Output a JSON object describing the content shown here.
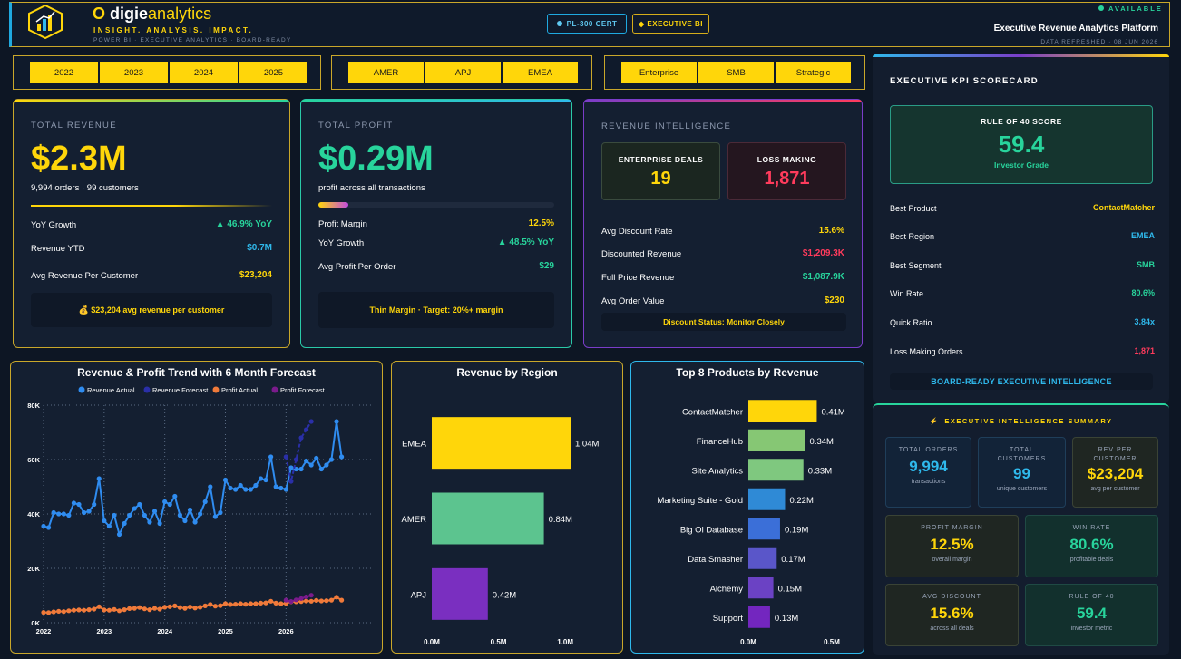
{
  "header": {
    "brand_letter": "O",
    "brand_name_1": "digie",
    "brand_name_2": "analytics",
    "tagline": "INSIGHT. ANALYSIS. IMPACT.",
    "subline": "POWER BI · EXECUTIVE ANALYTICS · BOARD-READY",
    "cert_badge": "PL-300 CERT",
    "exec_badge": "◆ EXECUTIVE BI",
    "status": "AVAILABLE",
    "platform_title": "Executive Revenue Analytics Platform",
    "refreshed": "DATA REFRESHED · 08 JUN 2026"
  },
  "slicers": {
    "years": [
      "2022",
      "2023",
      "2024",
      "2025"
    ],
    "regions": [
      "AMER",
      "APJ",
      "EMEA"
    ],
    "segments": [
      "Enterprise",
      "SMB",
      "Strategic"
    ]
  },
  "revenue_card": {
    "label": "TOTAL REVENUE",
    "value": "$2.3M",
    "sub": "9,994 orders · 99 customers",
    "rows": [
      {
        "label": "YoY Growth",
        "value": "▲ 46.9% YoY"
      },
      {
        "label": "Revenue YTD",
        "value": "$0.7M"
      },
      {
        "label": "Avg Revenue Per Customer",
        "value": "$23,204"
      }
    ],
    "footer": "💰 $23,204 avg revenue per customer"
  },
  "profit_card": {
    "label": "TOTAL PROFIT",
    "value": "$0.29M",
    "sub": "profit across all transactions",
    "margin_fill": 0.125,
    "rows": [
      {
        "label": "Profit Margin",
        "value": "12.5%"
      },
      {
        "label": "YoY Growth",
        "value": "▲ 48.5% YoY"
      },
      {
        "label": "Avg Profit Per Order",
        "value": "$29"
      }
    ],
    "footer": "Thin Margin · Target: 20%+ margin"
  },
  "intel_card": {
    "label": "REVENUE INTELLIGENCE",
    "enterprise_label": "ENTERPRISE DEALS",
    "enterprise_value": "19",
    "loss_label": "LOSS MAKING",
    "loss_value": "1,871",
    "rows": [
      {
        "label": "Avg Discount Rate",
        "value": "15.6%"
      },
      {
        "label": "Discounted Revenue",
        "value": "$1,209.3K"
      },
      {
        "label": "Full Price Revenue",
        "value": "$1,087.9K"
      },
      {
        "label": "Avg Order Value",
        "value": "$230"
      }
    ],
    "footer": "Discount Status: Monitor Closely"
  },
  "scorecard": {
    "title": "EXECUTIVE KPI SCORECARD",
    "rule_label": "RULE OF 40 SCORE",
    "rule_value": "59.4",
    "rule_grade": "Investor Grade",
    "rows": [
      {
        "label": "Best Product",
        "value": "ContactMatcher"
      },
      {
        "label": "Best Region",
        "value": "EMEA"
      },
      {
        "label": "Best Segment",
        "value": "SMB"
      },
      {
        "label": "Win Rate",
        "value": "80.6%"
      },
      {
        "label": "Quick Ratio",
        "value": "3.84x"
      },
      {
        "label": "Loss Making Orders",
        "value": "1,871"
      }
    ],
    "footer": "BOARD-READY EXECUTIVE INTELLIGENCE"
  },
  "summary": {
    "title": "EXECUTIVE INTELLIGENCE SUMMARY",
    "icon": "⚡",
    "tiles": [
      {
        "label": "TOTAL ORDERS",
        "value": "9,994",
        "sub": "transactions"
      },
      {
        "label": "TOTAL CUSTOMERS",
        "value": "99",
        "sub": "unique customers"
      },
      {
        "label": "REV PER CUSTOMER",
        "value": "$23,204",
        "sub": "avg per customer"
      },
      {
        "label": "PROFIT MARGIN",
        "value": "12.5%",
        "sub": "overall margin"
      },
      {
        "label": "WIN RATE",
        "value": "80.6%",
        "sub": "profitable deals"
      },
      {
        "label": "AVG DISCOUNT",
        "value": "15.6%",
        "sub": "across all deals"
      },
      {
        "label": "RULE OF 40",
        "value": "59.4",
        "sub": "investor metric"
      }
    ]
  },
  "chart_data": [
    {
      "type": "line",
      "title": "Revenue & Profit Trend with 6 Month Forecast",
      "legend": [
        "Revenue Actual",
        "Revenue Forecast",
        "Profit Actual",
        "Profit Forecast"
      ],
      "legend_position": "top",
      "colors": [
        "#2f8cf0",
        "#2a2fa8",
        "#f07a3a",
        "#7a1b8c"
      ],
      "x_ticks": [
        "2022",
        "2023",
        "2024",
        "2025",
        "2026"
      ],
      "y_ticks": [
        "0K",
        "20K",
        "40K",
        "60K",
        "80K"
      ],
      "ylim": [
        0,
        80000
      ],
      "grid": true,
      "series": [
        {
          "name": "Revenue Actual",
          "start": "2022-01",
          "values": [
            35500,
            35000,
            40500,
            40000,
            40000,
            39500,
            44000,
            43500,
            40500,
            41000,
            43500,
            53000,
            37500,
            35500,
            39500,
            32500,
            36500,
            39500,
            42000,
            43500,
            39500,
            37000,
            41000,
            36500,
            44500,
            43500,
            46500,
            39500,
            37500,
            41500,
            37000,
            40000,
            44500,
            50000,
            39000,
            40500,
            52500,
            49500,
            49000,
            50500,
            49000,
            49000,
            50500,
            53000,
            52500,
            61000,
            50000,
            49500,
            49000,
            57000,
            56500,
            56500,
            59500,
            58000,
            60500,
            56500,
            58000,
            60000,
            74000,
            61000
          ]
        },
        {
          "name": "Revenue Forecast",
          "start": "2026-01",
          "values": [
            61000,
            52000,
            60000,
            68000,
            71000,
            74000
          ]
        },
        {
          "name": "Profit Actual",
          "start": "2022-01",
          "values": [
            3800,
            3700,
            4000,
            4200,
            4100,
            4400,
            4600,
            4700,
            4600,
            4800,
            5000,
            5900,
            4700,
            4600,
            4900,
            4400,
            4800,
            5200,
            5300,
            5600,
            5100,
            4800,
            5300,
            5000,
            5700,
            5900,
            6200,
            5600,
            5300,
            5800,
            5400,
            5700,
            6200,
            6700,
            6100,
            6300,
            7000,
            6700,
            6800,
            7000,
            6800,
            7000,
            7000,
            7200,
            7300,
            7900,
            7200,
            7000,
            7100,
            7700,
            7700,
            7800,
            8000,
            7900,
            8200,
            8000,
            8100,
            8300,
            9400,
            8300
          ]
        },
        {
          "name": "Profit Forecast",
          "start": "2026-01",
          "values": [
            8300,
            7800,
            8400,
            8900,
            9500,
            10100
          ]
        }
      ]
    },
    {
      "type": "bar",
      "orientation": "horizontal",
      "title": "Revenue by Region",
      "categories": [
        "EMEA",
        "AMER",
        "APJ"
      ],
      "values": [
        1.04,
        0.84,
        0.42
      ],
      "labels": [
        "1.04M",
        "0.84M",
        "0.42M"
      ],
      "x_ticks": [
        "0.0M",
        "0.5M",
        "1.0M"
      ],
      "xlim": [
        0,
        1.04
      ],
      "colors": [
        "#ffd60a",
        "#5cc48f",
        "#7a2fc0"
      ]
    },
    {
      "type": "bar",
      "orientation": "horizontal",
      "title": "Top 8 Products by Revenue",
      "categories": [
        "ContactMatcher",
        "FinanceHub",
        "Site Analytics",
        "Marketing Suite - Gold",
        "Big Ol Database",
        "Data Smasher",
        "Alchemy",
        "Support"
      ],
      "values": [
        0.41,
        0.34,
        0.33,
        0.22,
        0.19,
        0.17,
        0.15,
        0.13
      ],
      "labels": [
        "0.41M",
        "0.34M",
        "0.33M",
        "0.22M",
        "0.19M",
        "0.17M",
        "0.15M",
        "0.13M"
      ],
      "x_ticks": [
        "0.0M",
        "0.5M"
      ],
      "xlim": [
        0,
        0.5
      ],
      "colors": [
        "#ffd60a",
        "#86c774",
        "#7fc87f",
        "#2f8ad6",
        "#3b6fd8",
        "#5a56c9",
        "#6b42c4",
        "#7326bf"
      ]
    }
  ]
}
